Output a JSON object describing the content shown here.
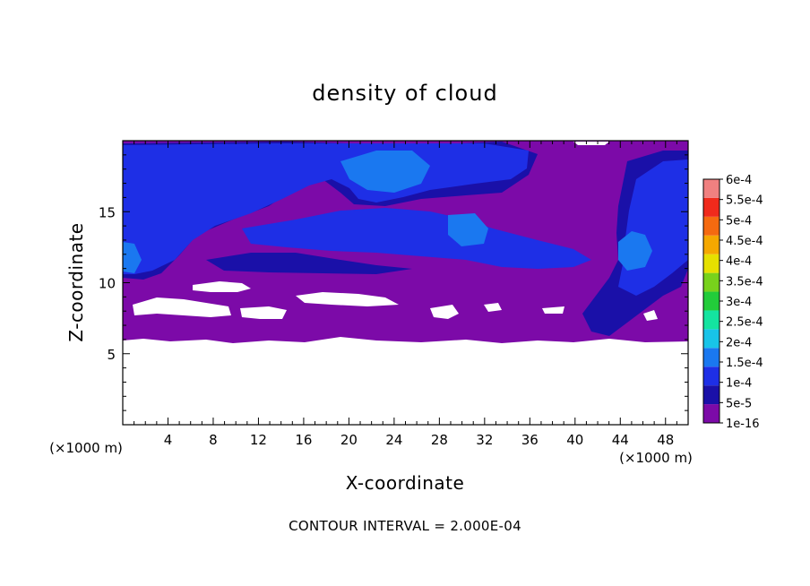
{
  "chart_data": {
    "type": "heatmap",
    "title": "density of cloud",
    "xlabel": "X-coordinate",
    "ylabel": "Z-coordinate",
    "x_unit": "(×1000 m)",
    "y_unit": "(×1000 m)",
    "xlim": [
      0,
      50
    ],
    "ylim": [
      0,
      20
    ],
    "x_ticks": [
      4,
      8,
      12,
      16,
      20,
      24,
      28,
      32,
      36,
      40,
      44,
      48
    ],
    "y_ticks": [
      5,
      10,
      15
    ],
    "grid": false,
    "colorbar": {
      "levels": [
        "1e-16",
        "5e-5",
        "1e-4",
        "1.5e-4",
        "2e-4",
        "2.5e-4",
        "3e-4",
        "3.5e-4",
        "4e-4",
        "4.5e-4",
        "5e-4",
        "5.5e-4",
        "6e-4"
      ],
      "colors": [
        "#7c0aa8",
        "#1a10a8",
        "#1e2fe6",
        "#1a78f0",
        "#18c4e8",
        "#14e4a0",
        "#22cc3a",
        "#78d21c",
        "#e6e000",
        "#f5a800",
        "#f56a10",
        "#f02a1c",
        "#f08080"
      ]
    },
    "note": "CONTOUR INTERVAL = 2.000E-04"
  }
}
